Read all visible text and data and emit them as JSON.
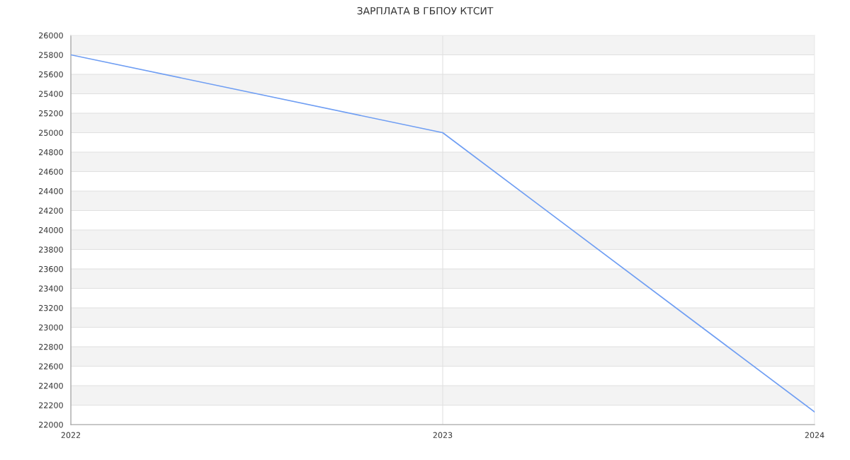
{
  "chart_data": {
    "type": "line",
    "title": "ЗАРПЛАТА В ГБПОУ КТСИТ",
    "x": [
      2022,
      2023,
      2024
    ],
    "series": [
      {
        "color": "#6f9ef3",
        "values": [
          25800,
          25000,
          22130
        ]
      }
    ],
    "xlim": [
      2022,
      2024
    ],
    "xticks": [
      2022,
      2023,
      2024
    ],
    "ylim": [
      22000,
      26000
    ],
    "yticks": [
      22000,
      22200,
      22400,
      22600,
      22800,
      23000,
      23200,
      23400,
      23600,
      23800,
      24000,
      24200,
      24400,
      24600,
      24800,
      25000,
      25200,
      25400,
      25600,
      25800,
      26000
    ],
    "grid": true,
    "marker": "none",
    "line_style": "solid"
  }
}
